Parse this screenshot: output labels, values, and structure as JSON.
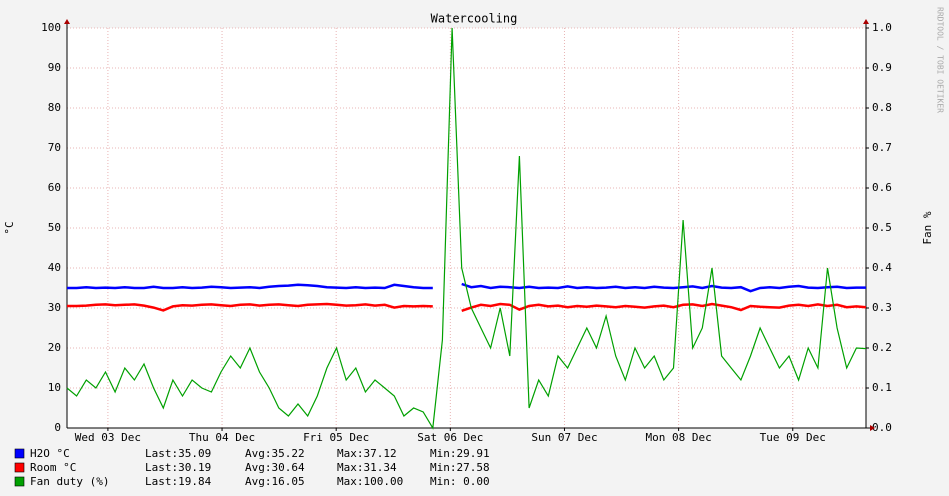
{
  "chart_data": {
    "type": "line",
    "title": "Watercooling",
    "ylabel": "°C",
    "y2label": "Fan %",
    "watermark": "RRDTOOL / TOBI OETIKER",
    "xlim": [
      0,
      168
    ],
    "xticks": [
      {
        "value": 8.6,
        "label": "Wed 03 Dec"
      },
      {
        "value": 32.6,
        "label": "Thu 04 Dec"
      },
      {
        "value": 56.6,
        "label": "Fri 05 Dec"
      },
      {
        "value": 80.6,
        "label": "Sat 06 Dec"
      },
      {
        "value": 104.6,
        "label": "Sun 07 Dec"
      },
      {
        "value": 128.6,
        "label": "Mon 08 Dec"
      },
      {
        "value": 152.6,
        "label": "Tue 09 Dec"
      }
    ],
    "ylim": [
      0,
      100
    ],
    "yticks": [
      0,
      10,
      20,
      30,
      40,
      50,
      60,
      70,
      80,
      90,
      100
    ],
    "y2lim": [
      0,
      1
    ],
    "y2ticks": [
      {
        "value": 0,
        "label": "0.0"
      },
      0.1,
      0.2,
      0.3,
      0.4,
      0.5,
      0.6,
      0.7,
      0.8,
      0.9,
      {
        "value": 1,
        "label": "1.0"
      }
    ],
    "grid": true,
    "series": [
      {
        "name": "H2O °C",
        "color": "#0000ff",
        "stats": [
          "Last:35.09",
          "Avg:35.22",
          "Max:37.12",
          "Min:29.91"
        ],
        "values": [
          35,
          35,
          35.2,
          35,
          35.1,
          35,
          35.2,
          35,
          35,
          35.3,
          35,
          35,
          35.2,
          35,
          35.1,
          35.3,
          35.2,
          35,
          35.1,
          35.2,
          35,
          35.3,
          35.5,
          35.6,
          35.8,
          35.7,
          35.5,
          35.2,
          35.1,
          35,
          35.2,
          35,
          35.1,
          35,
          35.8,
          35.5,
          35.2,
          35,
          35,
          null,
          null,
          36,
          35.2,
          35.5,
          35,
          35.3,
          35.2,
          35,
          35.3,
          35,
          35.1,
          35,
          35.4,
          35,
          35.2,
          35,
          35.1,
          35.3,
          35,
          35.2,
          35,
          35.3,
          35.1,
          35,
          35.2,
          35.4,
          35,
          35.5,
          35.1,
          35,
          35.2,
          34.2,
          35,
          35.2,
          35,
          35.3,
          35.5,
          35.1,
          35,
          35.2,
          35.3,
          35,
          35.1,
          35.09
        ]
      },
      {
        "name": "Room °C",
        "color": "#ff0000",
        "stats": [
          "Last:30.19",
          "Avg:30.64",
          "Max:31.34",
          "Min:27.58"
        ],
        "values": [
          30.5,
          30.5,
          30.6,
          30.8,
          30.9,
          30.7,
          30.8,
          30.9,
          30.6,
          30.1,
          29.4,
          30.4,
          30.7,
          30.6,
          30.8,
          30.9,
          30.7,
          30.5,
          30.8,
          30.9,
          30.6,
          30.8,
          30.9,
          30.7,
          30.5,
          30.8,
          30.9,
          31,
          30.8,
          30.6,
          30.7,
          30.9,
          30.6,
          30.8,
          30.1,
          30.5,
          30.4,
          30.5,
          30.4,
          null,
          null,
          29.3,
          30.1,
          30.8,
          30.5,
          31,
          30.8,
          29.6,
          30.5,
          30.8,
          30.4,
          30.6,
          30.2,
          30.5,
          30.3,
          30.6,
          30.4,
          30.2,
          30.5,
          30.3,
          30.1,
          30.4,
          30.6,
          30.2,
          30.8,
          30.9,
          30.5,
          31,
          30.6,
          30.2,
          29.5,
          30.5,
          30.3,
          30.2,
          30.1,
          30.6,
          30.8,
          30.5,
          30.9,
          30.5,
          30.8,
          30.2,
          30.4,
          30.19
        ]
      },
      {
        "name": "Fan duty (%)",
        "color": "#00a000",
        "stats": [
          "Last:19.84",
          "Avg:16.05",
          "Max:100.00",
          "Min: 0.00"
        ],
        "values": [
          10,
          8,
          12,
          10,
          14,
          9,
          15,
          12,
          16,
          10,
          5,
          12,
          8,
          12,
          10,
          9,
          14,
          18,
          15,
          20,
          14,
          10,
          5,
          3,
          6,
          3,
          8,
          15,
          20,
          12,
          15,
          9,
          12,
          10,
          8,
          3,
          5,
          4,
          0,
          22,
          100,
          40,
          30,
          25,
          20,
          30,
          18,
          68,
          5,
          12,
          8,
          18,
          15,
          20,
          25,
          20,
          28,
          18,
          12,
          20,
          15,
          18,
          12,
          15,
          52,
          20,
          25,
          40,
          18,
          15,
          12,
          18,
          25,
          20,
          15,
          18,
          12,
          20,
          15,
          40,
          25,
          15,
          20,
          19.84
        ]
      }
    ]
  }
}
